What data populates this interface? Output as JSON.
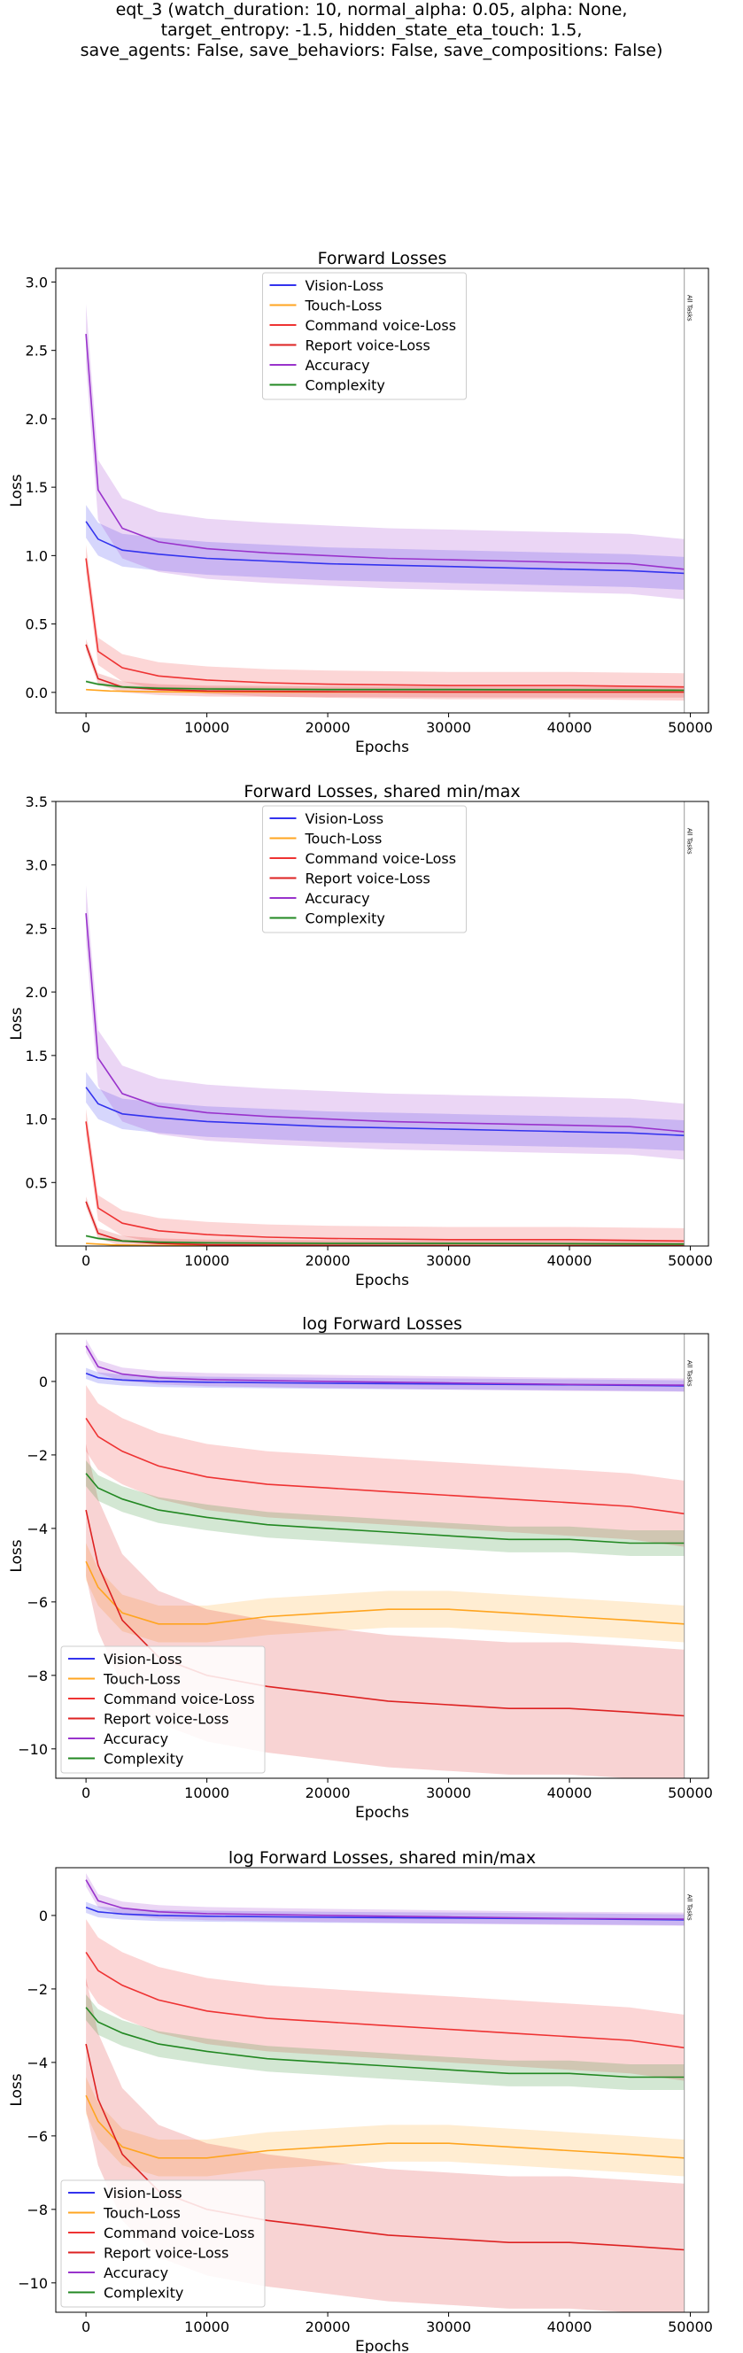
{
  "figure_title": [
    "eqt_3 (watch_duration: 10, normal_alpha: 0.05, alpha: None,",
    "target_entropy: -1.5, hidden_state_eta_touch: 1.5,",
    "save_agents: False, save_behaviors: False, save_compositions: False)"
  ],
  "all_tasks_label": "All Tasks",
  "colors": {
    "vision": "#3333ee",
    "touch": "#ffa520",
    "command": "#ee3333",
    "report": "#dd2222",
    "accuracy": "#9933cc",
    "complexity": "#228822"
  },
  "chart_data": [
    {
      "type": "line",
      "title": "Forward Losses",
      "xlabel": "Epochs",
      "ylabel": "Loss",
      "xlim": [
        -2500,
        51500
      ],
      "ylim": [
        -0.15,
        3.1
      ],
      "xticks": [
        0,
        10000,
        20000,
        30000,
        40000,
        50000
      ],
      "xtick_labels": [
        "0",
        "10000",
        "20000",
        "30000",
        "40000",
        "50000"
      ],
      "yticks": [
        0.0,
        0.5,
        1.0,
        1.5,
        2.0,
        2.5,
        3.0
      ],
      "ytick_labels": [
        "0.0",
        "0.5",
        "1.0",
        "1.5",
        "2.0",
        "2.5",
        "3.0"
      ],
      "legend_position": "top-center",
      "all_tasks_x": 49500,
      "series": [
        {
          "name": "Vision-Loss",
          "color_key": "vision",
          "x": [
            0,
            1000,
            3000,
            6000,
            10000,
            15000,
            20000,
            25000,
            30000,
            35000,
            40000,
            45000,
            49500
          ],
          "y": [
            1.25,
            1.12,
            1.04,
            1.01,
            0.98,
            0.96,
            0.94,
            0.93,
            0.92,
            0.91,
            0.9,
            0.89,
            0.87
          ],
          "band": 0.12
        },
        {
          "name": "Touch-Loss",
          "color_key": "touch",
          "x": [
            0,
            2000,
            5000,
            10000,
            20000,
            30000,
            40000,
            49500
          ],
          "y": [
            0.02,
            0.01,
            0.005,
            0.003,
            0.002,
            0.002,
            0.002,
            0.002
          ],
          "band": 0.005
        },
        {
          "name": "Command voice-Loss",
          "color_key": "command",
          "x": [
            0,
            1000,
            3000,
            6000,
            10000,
            15000,
            20000,
            30000,
            40000,
            49500
          ],
          "y": [
            0.98,
            0.3,
            0.18,
            0.12,
            0.09,
            0.07,
            0.06,
            0.05,
            0.05,
            0.04
          ],
          "band": 0.1
        },
        {
          "name": "Report voice-Loss",
          "color_key": "report",
          "x": [
            0,
            1000,
            3000,
            6000,
            10000,
            20000,
            30000,
            40000,
            49500
          ],
          "y": [
            0.35,
            0.1,
            0.04,
            0.02,
            0.01,
            0.005,
            0.003,
            0.002,
            0.002
          ],
          "band": 0.04
        },
        {
          "name": "Accuracy",
          "color_key": "accuracy",
          "x": [
            0,
            1000,
            3000,
            6000,
            10000,
            15000,
            20000,
            25000,
            30000,
            35000,
            40000,
            45000,
            49500
          ],
          "y": [
            2.62,
            1.48,
            1.2,
            1.1,
            1.05,
            1.02,
            1.0,
            0.98,
            0.97,
            0.96,
            0.95,
            0.94,
            0.9
          ],
          "band": 0.22
        },
        {
          "name": "Complexity",
          "color_key": "complexity",
          "x": [
            0,
            1000,
            3000,
            6000,
            10000,
            20000,
            30000,
            40000,
            49500
          ],
          "y": [
            0.08,
            0.06,
            0.04,
            0.03,
            0.025,
            0.02,
            0.02,
            0.018,
            0.015
          ],
          "band": 0.01
        }
      ]
    },
    {
      "type": "line",
      "title": "Forward Losses, shared min/max",
      "xlabel": "Epochs",
      "ylabel": "Loss",
      "xlim": [
        -2500,
        51500
      ],
      "ylim": [
        0.0,
        3.5
      ],
      "xticks": [
        0,
        10000,
        20000,
        30000,
        40000,
        50000
      ],
      "xtick_labels": [
        "0",
        "10000",
        "20000",
        "30000",
        "40000",
        "50000"
      ],
      "yticks": [
        0.5,
        1.0,
        1.5,
        2.0,
        2.5,
        3.0,
        3.5
      ],
      "ytick_labels": [
        "0.5",
        "1.0",
        "1.5",
        "2.0",
        "2.5",
        "3.0",
        "3.5"
      ],
      "legend_position": "top-center",
      "all_tasks_x": 49500,
      "series": [
        {
          "name": "Vision-Loss",
          "color_key": "vision",
          "x": [
            0,
            1000,
            3000,
            6000,
            10000,
            15000,
            20000,
            25000,
            30000,
            35000,
            40000,
            45000,
            49500
          ],
          "y": [
            1.25,
            1.12,
            1.04,
            1.01,
            0.98,
            0.96,
            0.94,
            0.93,
            0.92,
            0.91,
            0.9,
            0.89,
            0.87
          ],
          "band": 0.12
        },
        {
          "name": "Touch-Loss",
          "color_key": "touch",
          "x": [
            0,
            2000,
            5000,
            10000,
            20000,
            30000,
            40000,
            49500
          ],
          "y": [
            0.02,
            0.01,
            0.005,
            0.003,
            0.002,
            0.002,
            0.002,
            0.002
          ],
          "band": 0.005
        },
        {
          "name": "Command voice-Loss",
          "color_key": "command",
          "x": [
            0,
            1000,
            3000,
            6000,
            10000,
            15000,
            20000,
            30000,
            40000,
            49500
          ],
          "y": [
            0.98,
            0.3,
            0.18,
            0.12,
            0.09,
            0.07,
            0.06,
            0.05,
            0.05,
            0.04
          ],
          "band": 0.1
        },
        {
          "name": "Report voice-Loss",
          "color_key": "report",
          "x": [
            0,
            1000,
            3000,
            6000,
            10000,
            20000,
            30000,
            40000,
            49500
          ],
          "y": [
            0.35,
            0.1,
            0.04,
            0.02,
            0.01,
            0.005,
            0.003,
            0.002,
            0.002
          ],
          "band": 0.04
        },
        {
          "name": "Accuracy",
          "color_key": "accuracy",
          "x": [
            0,
            1000,
            3000,
            6000,
            10000,
            15000,
            20000,
            25000,
            30000,
            35000,
            40000,
            45000,
            49500
          ],
          "y": [
            2.62,
            1.48,
            1.2,
            1.1,
            1.05,
            1.02,
            1.0,
            0.98,
            0.97,
            0.96,
            0.95,
            0.94,
            0.9
          ],
          "band": 0.22
        },
        {
          "name": "Complexity",
          "color_key": "complexity",
          "x": [
            0,
            1000,
            3000,
            6000,
            10000,
            20000,
            30000,
            40000,
            49500
          ],
          "y": [
            0.08,
            0.06,
            0.04,
            0.03,
            0.025,
            0.02,
            0.02,
            0.018,
            0.015
          ],
          "band": 0.01
        }
      ]
    },
    {
      "type": "line",
      "title": "log Forward Losses",
      "xlabel": "Epochs",
      "ylabel": "Loss",
      "xlim": [
        -2500,
        51500
      ],
      "ylim": [
        -10.8,
        1.3
      ],
      "xticks": [
        0,
        10000,
        20000,
        30000,
        40000,
        50000
      ],
      "xtick_labels": [
        "0",
        "10000",
        "20000",
        "30000",
        "40000",
        "50000"
      ],
      "yticks": [
        -10,
        -8,
        -6,
        -4,
        -2,
        0
      ],
      "ytick_labels": [
        "−10",
        "−8",
        "−6",
        "−4",
        "−2",
        "0"
      ],
      "legend_position": "bottom-left",
      "all_tasks_x": 49500,
      "series": [
        {
          "name": "Vision-Loss",
          "color_key": "vision",
          "x": [
            0,
            1000,
            3000,
            6000,
            10000,
            20000,
            30000,
            40000,
            49500
          ],
          "y": [
            0.22,
            0.1,
            0.04,
            0.0,
            -0.02,
            -0.05,
            -0.07,
            -0.09,
            -0.12
          ],
          "band": 0.15
        },
        {
          "name": "Touch-Loss",
          "color_key": "touch",
          "x": [
            0,
            1000,
            3000,
            6000,
            10000,
            15000,
            20000,
            25000,
            30000,
            35000,
            40000,
            45000,
            49500
          ],
          "y": [
            -4.9,
            -5.6,
            -6.3,
            -6.6,
            -6.6,
            -6.4,
            -6.3,
            -6.2,
            -6.2,
            -6.3,
            -6.4,
            -6.5,
            -6.6
          ],
          "band": 0.5
        },
        {
          "name": "Command voice-Loss",
          "color_key": "command",
          "x": [
            0,
            1000,
            3000,
            6000,
            10000,
            15000,
            20000,
            25000,
            30000,
            35000,
            40000,
            45000,
            49500
          ],
          "y": [
            -1.0,
            -1.5,
            -1.9,
            -2.3,
            -2.6,
            -2.8,
            -2.9,
            -3.0,
            -3.1,
            -3.2,
            -3.3,
            -3.4,
            -3.6
          ],
          "band": 0.9
        },
        {
          "name": "Report voice-Loss",
          "color_key": "report",
          "x": [
            0,
            1000,
            3000,
            6000,
            10000,
            15000,
            20000,
            25000,
            30000,
            35000,
            40000,
            45000,
            49500
          ],
          "y": [
            -3.5,
            -5.0,
            -6.5,
            -7.5,
            -8.0,
            -8.3,
            -8.5,
            -8.7,
            -8.8,
            -8.9,
            -8.9,
            -9.0,
            -9.1
          ],
          "band": 1.8
        },
        {
          "name": "Accuracy",
          "color_key": "accuracy",
          "x": [
            0,
            1000,
            3000,
            6000,
            10000,
            20000,
            30000,
            40000,
            49500
          ],
          "y": [
            0.97,
            0.4,
            0.2,
            0.1,
            0.05,
            0.0,
            -0.04,
            -0.08,
            -0.1
          ],
          "band": 0.18
        },
        {
          "name": "Complexity",
          "color_key": "complexity",
          "x": [
            0,
            1000,
            3000,
            6000,
            10000,
            15000,
            20000,
            25000,
            30000,
            35000,
            40000,
            45000,
            49500
          ],
          "y": [
            -2.5,
            -2.9,
            -3.2,
            -3.5,
            -3.7,
            -3.9,
            -4.0,
            -4.1,
            -4.2,
            -4.3,
            -4.3,
            -4.4,
            -4.4
          ],
          "band": 0.35
        }
      ]
    },
    {
      "type": "line",
      "title": "log Forward Losses, shared min/max",
      "xlabel": "Epochs",
      "ylabel": "Loss",
      "xlim": [
        -2500,
        51500
      ],
      "ylim": [
        -10.8,
        1.3
      ],
      "xticks": [
        0,
        10000,
        20000,
        30000,
        40000,
        50000
      ],
      "xtick_labels": [
        "0",
        "10000",
        "20000",
        "30000",
        "40000",
        "50000"
      ],
      "yticks": [
        -10,
        -8,
        -6,
        -4,
        -2,
        0
      ],
      "ytick_labels": [
        "−10",
        "−8",
        "−6",
        "−4",
        "−2",
        "0"
      ],
      "legend_position": "bottom-left",
      "all_tasks_x": 49500,
      "series": [
        {
          "name": "Vision-Loss",
          "color_key": "vision",
          "x": [
            0,
            1000,
            3000,
            6000,
            10000,
            20000,
            30000,
            40000,
            49500
          ],
          "y": [
            0.22,
            0.1,
            0.04,
            0.0,
            -0.02,
            -0.05,
            -0.07,
            -0.09,
            -0.12
          ],
          "band": 0.15
        },
        {
          "name": "Touch-Loss",
          "color_key": "touch",
          "x": [
            0,
            1000,
            3000,
            6000,
            10000,
            15000,
            20000,
            25000,
            30000,
            35000,
            40000,
            45000,
            49500
          ],
          "y": [
            -4.9,
            -5.6,
            -6.3,
            -6.6,
            -6.6,
            -6.4,
            -6.3,
            -6.2,
            -6.2,
            -6.3,
            -6.4,
            -6.5,
            -6.6
          ],
          "band": 0.5
        },
        {
          "name": "Command voice-Loss",
          "color_key": "command",
          "x": [
            0,
            1000,
            3000,
            6000,
            10000,
            15000,
            20000,
            25000,
            30000,
            35000,
            40000,
            45000,
            49500
          ],
          "y": [
            -1.0,
            -1.5,
            -1.9,
            -2.3,
            -2.6,
            -2.8,
            -2.9,
            -3.0,
            -3.1,
            -3.2,
            -3.3,
            -3.4,
            -3.6
          ],
          "band": 0.9
        },
        {
          "name": "Report voice-Loss",
          "color_key": "report",
          "x": [
            0,
            1000,
            3000,
            6000,
            10000,
            15000,
            20000,
            25000,
            30000,
            35000,
            40000,
            45000,
            49500
          ],
          "y": [
            -3.5,
            -5.0,
            -6.5,
            -7.5,
            -8.0,
            -8.3,
            -8.5,
            -8.7,
            -8.8,
            -8.9,
            -8.9,
            -9.0,
            -9.1
          ],
          "band": 1.8
        },
        {
          "name": "Accuracy",
          "color_key": "accuracy",
          "x": [
            0,
            1000,
            3000,
            6000,
            10000,
            20000,
            30000,
            40000,
            49500
          ],
          "y": [
            0.97,
            0.4,
            0.2,
            0.1,
            0.05,
            0.0,
            -0.04,
            -0.08,
            -0.1
          ],
          "band": 0.18
        },
        {
          "name": "Complexity",
          "color_key": "complexity",
          "x": [
            0,
            1000,
            3000,
            6000,
            10000,
            15000,
            20000,
            25000,
            30000,
            35000,
            40000,
            45000,
            49500
          ],
          "y": [
            -2.5,
            -2.9,
            -3.2,
            -3.5,
            -3.7,
            -3.9,
            -4.0,
            -4.1,
            -4.2,
            -4.3,
            -4.3,
            -4.4,
            -4.4
          ],
          "band": 0.35
        }
      ]
    }
  ]
}
